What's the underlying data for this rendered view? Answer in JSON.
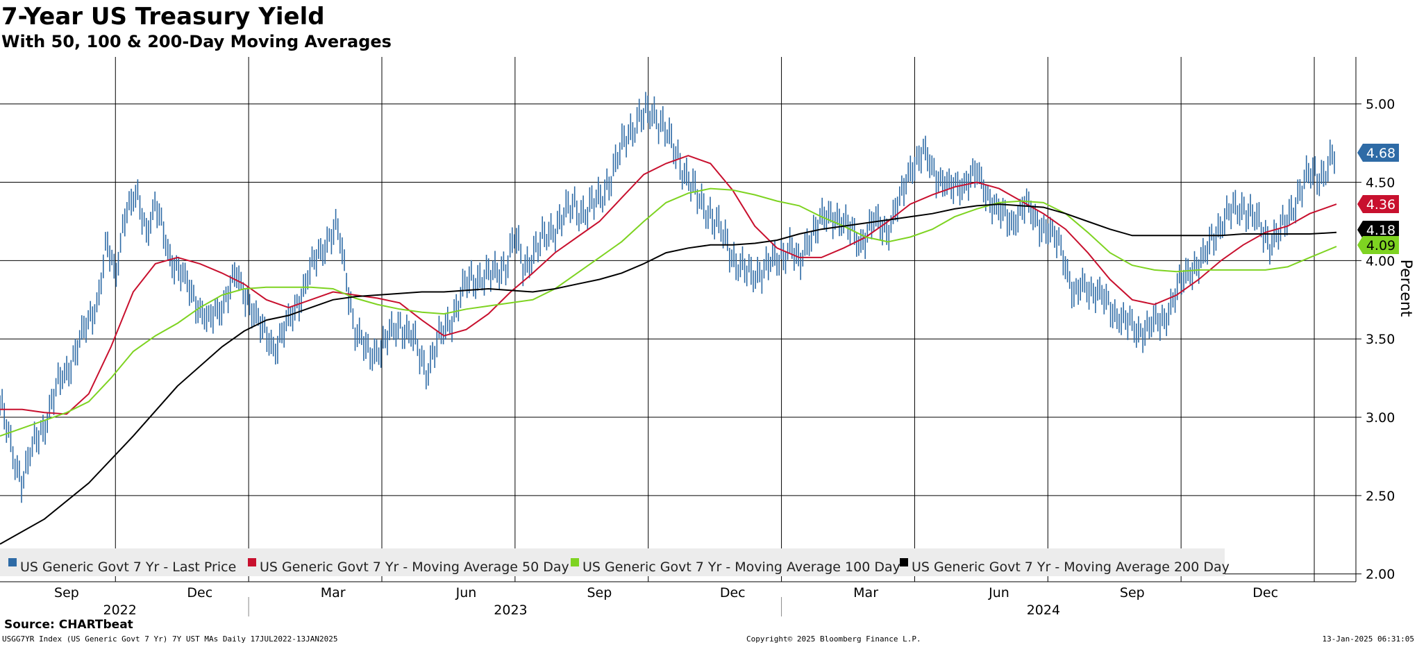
{
  "header": {
    "title": "7-Year US Treasury Yield",
    "subtitle": "With 50, 100 & 200-Day Moving Averages"
  },
  "footer": {
    "source": "Source: CHARTbeat",
    "ticker_info": "USGG7YR Index (US Generic Govt 7 Yr) 7Y UST MAs  Daily 17JUL2022-13JAN2025",
    "copyright": "Copyright© 2025 Bloomberg Finance L.P.",
    "timestamp": "13-Jan-2025 06:31:05"
  },
  "colors": {
    "price": "#2e6ba6",
    "ma50": "#c8102e",
    "ma100": "#7ed321",
    "ma200": "#000000",
    "legend_bg": "#ececec",
    "grid": "#000000"
  },
  "chart_data": {
    "type": "line",
    "title": "7-Year US Treasury Yield",
    "subtitle": "With 50, 100 & 200-Day Moving Averages",
    "ylabel": "Percent",
    "xlabel": "",
    "ylim": [
      1.95,
      5.3
    ],
    "y_ticks": [
      2.0,
      2.5,
      3.0,
      3.5,
      4.0,
      4.5,
      5.0
    ],
    "y_tick_labels": [
      "2.00",
      "2.50",
      "3.00",
      "3.50",
      "4.00",
      "4.50",
      "5.00"
    ],
    "x_range_months": [
      0,
      30.1
    ],
    "month_ticks": [
      {
        "label": "Sep",
        "m": 1.5
      },
      {
        "label": "Dec",
        "m": 4.5
      },
      {
        "label": "Mar",
        "m": 7.5
      },
      {
        "label": "Jun",
        "m": 10.5
      },
      {
        "label": "Sep",
        "m": 13.5
      },
      {
        "label": "Dec",
        "m": 16.5
      },
      {
        "label": "Mar",
        "m": 19.5
      },
      {
        "label": "Jun",
        "m": 22.5
      },
      {
        "label": "Sep",
        "m": 25.5
      },
      {
        "label": "Dec",
        "m": 28.5
      }
    ],
    "vertical_gridlines_m": [
      2.6,
      5.6,
      8.6,
      11.6,
      14.6,
      17.6,
      20.6,
      23.6,
      26.6,
      29.6
    ],
    "year_labels": [
      {
        "label": "2022",
        "m": 2.7
      },
      {
        "label": "2023",
        "m": 11.5
      },
      {
        "label": "2024",
        "m": 23.5
      }
    ],
    "year_separators_m": [
      5.6,
      17.6
    ],
    "legend_position": "bottom-left",
    "series": [
      {
        "name": "US Generic Govt 7 Yr - Last Price",
        "style": "bars",
        "color": "#2e6ba6",
        "last_value": "4.68",
        "points": [
          [
            0,
            3.1
          ],
          [
            0.3,
            2.75
          ],
          [
            0.5,
            2.6
          ],
          [
            0.8,
            2.85
          ],
          [
            1.0,
            2.95
          ],
          [
            1.3,
            3.2
          ],
          [
            1.6,
            3.35
          ],
          [
            1.9,
            3.55
          ],
          [
            2.2,
            3.75
          ],
          [
            2.4,
            4.1
          ],
          [
            2.6,
            3.9
          ],
          [
            2.8,
            4.3
          ],
          [
            3.1,
            4.4
          ],
          [
            3.3,
            4.2
          ],
          [
            3.5,
            4.35
          ],
          [
            3.8,
            4.05
          ],
          [
            4.1,
            3.9
          ],
          [
            4.4,
            3.75
          ],
          [
            4.7,
            3.6
          ],
          [
            5.0,
            3.72
          ],
          [
            5.3,
            3.9
          ],
          [
            5.6,
            3.75
          ],
          [
            5.9,
            3.55
          ],
          [
            6.2,
            3.45
          ],
          [
            6.5,
            3.6
          ],
          [
            6.8,
            3.8
          ],
          [
            7.1,
            4.0
          ],
          [
            7.4,
            4.15
          ],
          [
            7.6,
            4.2
          ],
          [
            7.8,
            3.9
          ],
          [
            8.0,
            3.55
          ],
          [
            8.3,
            3.4
          ],
          [
            8.6,
            3.45
          ],
          [
            9.0,
            3.6
          ],
          [
            9.3,
            3.5
          ],
          [
            9.6,
            3.3
          ],
          [
            9.9,
            3.5
          ],
          [
            10.2,
            3.65
          ],
          [
            10.5,
            3.85
          ],
          [
            10.8,
            3.9
          ],
          [
            11.1,
            3.9
          ],
          [
            11.4,
            3.98
          ],
          [
            11.6,
            4.15
          ],
          [
            11.8,
            3.95
          ],
          [
            12.0,
            4.05
          ],
          [
            12.3,
            4.15
          ],
          [
            12.6,
            4.25
          ],
          [
            12.9,
            4.35
          ],
          [
            13.2,
            4.3
          ],
          [
            13.5,
            4.4
          ],
          [
            13.8,
            4.55
          ],
          [
            14.1,
            4.8
          ],
          [
            14.4,
            4.9
          ],
          [
            14.7,
            4.95
          ],
          [
            14.9,
            4.88
          ],
          [
            15.1,
            4.75
          ],
          [
            15.4,
            4.58
          ],
          [
            15.7,
            4.4
          ],
          [
            16.0,
            4.3
          ],
          [
            16.3,
            4.15
          ],
          [
            16.6,
            3.98
          ],
          [
            16.9,
            3.9
          ],
          [
            17.2,
            3.95
          ],
          [
            17.5,
            4.0
          ],
          [
            17.8,
            4.1
          ],
          [
            18.0,
            3.95
          ],
          [
            18.2,
            4.15
          ],
          [
            18.5,
            4.25
          ],
          [
            18.8,
            4.3
          ],
          [
            19.1,
            4.2
          ],
          [
            19.4,
            4.12
          ],
          [
            19.7,
            4.25
          ],
          [
            20.0,
            4.2
          ],
          [
            20.3,
            4.4
          ],
          [
            20.5,
            4.6
          ],
          [
            20.8,
            4.68
          ],
          [
            21.1,
            4.55
          ],
          [
            21.4,
            4.45
          ],
          [
            21.7,
            4.5
          ],
          [
            22.0,
            4.55
          ],
          [
            22.3,
            4.4
          ],
          [
            22.5,
            4.3
          ],
          [
            22.8,
            4.25
          ],
          [
            23.1,
            4.35
          ],
          [
            23.4,
            4.25
          ],
          [
            23.6,
            4.18
          ],
          [
            23.9,
            4.1
          ],
          [
            24.2,
            3.75
          ],
          [
            24.4,
            3.85
          ],
          [
            24.7,
            3.8
          ],
          [
            25.0,
            3.7
          ],
          [
            25.3,
            3.62
          ],
          [
            25.6,
            3.55
          ],
          [
            25.9,
            3.58
          ],
          [
            26.2,
            3.62
          ],
          [
            26.5,
            3.8
          ],
          [
            26.8,
            3.95
          ],
          [
            27.1,
            4.0
          ],
          [
            27.4,
            4.2
          ],
          [
            27.7,
            4.3
          ],
          [
            28.0,
            4.35
          ],
          [
            28.3,
            4.25
          ],
          [
            28.6,
            4.12
          ],
          [
            28.9,
            4.2
          ],
          [
            29.2,
            4.4
          ],
          [
            29.5,
            4.55
          ],
          [
            29.8,
            4.55
          ],
          [
            30.1,
            4.68
          ]
        ]
      },
      {
        "name": "US Generic Govt 7 Yr - Moving Average 50 Day",
        "style": "line",
        "color": "#c8102e",
        "last_value": "4.36",
        "points": [
          [
            0,
            3.05
          ],
          [
            0.5,
            3.05
          ],
          [
            1.0,
            3.03
          ],
          [
            1.5,
            3.02
          ],
          [
            2.0,
            3.15
          ],
          [
            2.5,
            3.45
          ],
          [
            3.0,
            3.8
          ],
          [
            3.5,
            3.98
          ],
          [
            4.0,
            4.02
          ],
          [
            4.5,
            3.98
          ],
          [
            5.0,
            3.92
          ],
          [
            5.5,
            3.85
          ],
          [
            6.0,
            3.75
          ],
          [
            6.5,
            3.7
          ],
          [
            7.0,
            3.75
          ],
          [
            7.5,
            3.8
          ],
          [
            8.0,
            3.78
          ],
          [
            8.5,
            3.76
          ],
          [
            9.0,
            3.73
          ],
          [
            9.5,
            3.62
          ],
          [
            10.0,
            3.52
          ],
          [
            10.5,
            3.56
          ],
          [
            11.0,
            3.66
          ],
          [
            11.5,
            3.8
          ],
          [
            12.0,
            3.92
          ],
          [
            12.5,
            4.05
          ],
          [
            13.0,
            4.15
          ],
          [
            13.5,
            4.25
          ],
          [
            14.0,
            4.4
          ],
          [
            14.5,
            4.55
          ],
          [
            15.0,
            4.62
          ],
          [
            15.5,
            4.67
          ],
          [
            16.0,
            4.62
          ],
          [
            16.5,
            4.45
          ],
          [
            17.0,
            4.22
          ],
          [
            17.5,
            4.08
          ],
          [
            18.0,
            4.02
          ],
          [
            18.5,
            4.02
          ],
          [
            19.0,
            4.08
          ],
          [
            19.5,
            4.15
          ],
          [
            20.0,
            4.25
          ],
          [
            20.5,
            4.36
          ],
          [
            21.0,
            4.42
          ],
          [
            21.5,
            4.47
          ],
          [
            22.0,
            4.5
          ],
          [
            22.5,
            4.46
          ],
          [
            23.0,
            4.38
          ],
          [
            23.5,
            4.3
          ],
          [
            24.0,
            4.2
          ],
          [
            24.5,
            4.05
          ],
          [
            25.0,
            3.88
          ],
          [
            25.5,
            3.75
          ],
          [
            26.0,
            3.72
          ],
          [
            26.5,
            3.78
          ],
          [
            27.0,
            3.88
          ],
          [
            27.5,
            4.0
          ],
          [
            28.0,
            4.1
          ],
          [
            28.5,
            4.18
          ],
          [
            29.0,
            4.22
          ],
          [
            29.5,
            4.3
          ],
          [
            30.1,
            4.36
          ]
        ]
      },
      {
        "name": "US Generic Govt 7 Yr - Moving Average 100 Day",
        "style": "line",
        "color": "#7ed321",
        "last_value": "4.09",
        "points": [
          [
            0,
            2.88
          ],
          [
            0.5,
            2.93
          ],
          [
            1.0,
            2.98
          ],
          [
            1.5,
            3.03
          ],
          [
            2.0,
            3.1
          ],
          [
            2.5,
            3.25
          ],
          [
            3.0,
            3.42
          ],
          [
            3.5,
            3.52
          ],
          [
            4.0,
            3.6
          ],
          [
            4.5,
            3.7
          ],
          [
            5.0,
            3.78
          ],
          [
            5.5,
            3.82
          ],
          [
            6.0,
            3.83
          ],
          [
            6.5,
            3.83
          ],
          [
            7.0,
            3.83
          ],
          [
            7.5,
            3.82
          ],
          [
            8.0,
            3.76
          ],
          [
            8.5,
            3.72
          ],
          [
            9.0,
            3.69
          ],
          [
            9.5,
            3.67
          ],
          [
            10.0,
            3.66
          ],
          [
            10.5,
            3.69
          ],
          [
            11.0,
            3.71
          ],
          [
            11.5,
            3.73
          ],
          [
            12.0,
            3.75
          ],
          [
            12.5,
            3.82
          ],
          [
            13.0,
            3.92
          ],
          [
            13.5,
            4.02
          ],
          [
            14.0,
            4.12
          ],
          [
            14.5,
            4.25
          ],
          [
            15.0,
            4.37
          ],
          [
            15.5,
            4.43
          ],
          [
            16.0,
            4.46
          ],
          [
            16.5,
            4.45
          ],
          [
            17.0,
            4.42
          ],
          [
            17.5,
            4.38
          ],
          [
            18.0,
            4.35
          ],
          [
            18.5,
            4.28
          ],
          [
            19.0,
            4.22
          ],
          [
            19.5,
            4.15
          ],
          [
            20.0,
            4.12
          ],
          [
            20.5,
            4.15
          ],
          [
            21.0,
            4.2
          ],
          [
            21.5,
            4.28
          ],
          [
            22.0,
            4.33
          ],
          [
            22.5,
            4.37
          ],
          [
            23.0,
            4.38
          ],
          [
            23.5,
            4.37
          ],
          [
            24.0,
            4.3
          ],
          [
            24.5,
            4.18
          ],
          [
            25.0,
            4.05
          ],
          [
            25.5,
            3.97
          ],
          [
            26.0,
            3.94
          ],
          [
            26.5,
            3.93
          ],
          [
            27.0,
            3.94
          ],
          [
            27.5,
            3.94
          ],
          [
            28.0,
            3.94
          ],
          [
            28.5,
            3.94
          ],
          [
            29.0,
            3.96
          ],
          [
            29.5,
            4.02
          ],
          [
            30.1,
            4.09
          ]
        ]
      },
      {
        "name": "US Generic Govt 7 Yr - Moving Average 200 Day",
        "style": "line",
        "color": "#000000",
        "last_value": "4.18",
        "points": [
          [
            0,
            2.19
          ],
          [
            1.0,
            2.35
          ],
          [
            2.0,
            2.58
          ],
          [
            3.0,
            2.88
          ],
          [
            4.0,
            3.2
          ],
          [
            5.0,
            3.45
          ],
          [
            5.5,
            3.55
          ],
          [
            6.0,
            3.62
          ],
          [
            6.5,
            3.65
          ],
          [
            7.0,
            3.7
          ],
          [
            7.5,
            3.75
          ],
          [
            8.0,
            3.77
          ],
          [
            8.5,
            3.78
          ],
          [
            9.0,
            3.79
          ],
          [
            9.5,
            3.8
          ],
          [
            10.0,
            3.8
          ],
          [
            10.5,
            3.81
          ],
          [
            11.0,
            3.82
          ],
          [
            11.5,
            3.81
          ],
          [
            12.0,
            3.8
          ],
          [
            12.5,
            3.82
          ],
          [
            13.0,
            3.85
          ],
          [
            13.5,
            3.88
          ],
          [
            14.0,
            3.92
          ],
          [
            14.5,
            3.98
          ],
          [
            15.0,
            4.05
          ],
          [
            15.5,
            4.08
          ],
          [
            16.0,
            4.1
          ],
          [
            16.5,
            4.1
          ],
          [
            17.0,
            4.11
          ],
          [
            17.5,
            4.13
          ],
          [
            18.0,
            4.17
          ],
          [
            18.5,
            4.2
          ],
          [
            19.0,
            4.22
          ],
          [
            19.5,
            4.24
          ],
          [
            20.0,
            4.26
          ],
          [
            20.5,
            4.28
          ],
          [
            21.0,
            4.3
          ],
          [
            21.5,
            4.33
          ],
          [
            22.0,
            4.35
          ],
          [
            22.5,
            4.36
          ],
          [
            23.0,
            4.35
          ],
          [
            23.5,
            4.34
          ],
          [
            24.0,
            4.3
          ],
          [
            24.5,
            4.25
          ],
          [
            25.0,
            4.2
          ],
          [
            25.5,
            4.16
          ],
          [
            26.0,
            4.16
          ],
          [
            26.5,
            4.16
          ],
          [
            27.0,
            4.16
          ],
          [
            27.5,
            4.16
          ],
          [
            28.0,
            4.17
          ],
          [
            28.5,
            4.17
          ],
          [
            29.0,
            4.17
          ],
          [
            29.5,
            4.17
          ],
          [
            30.1,
            4.18
          ]
        ]
      }
    ]
  }
}
